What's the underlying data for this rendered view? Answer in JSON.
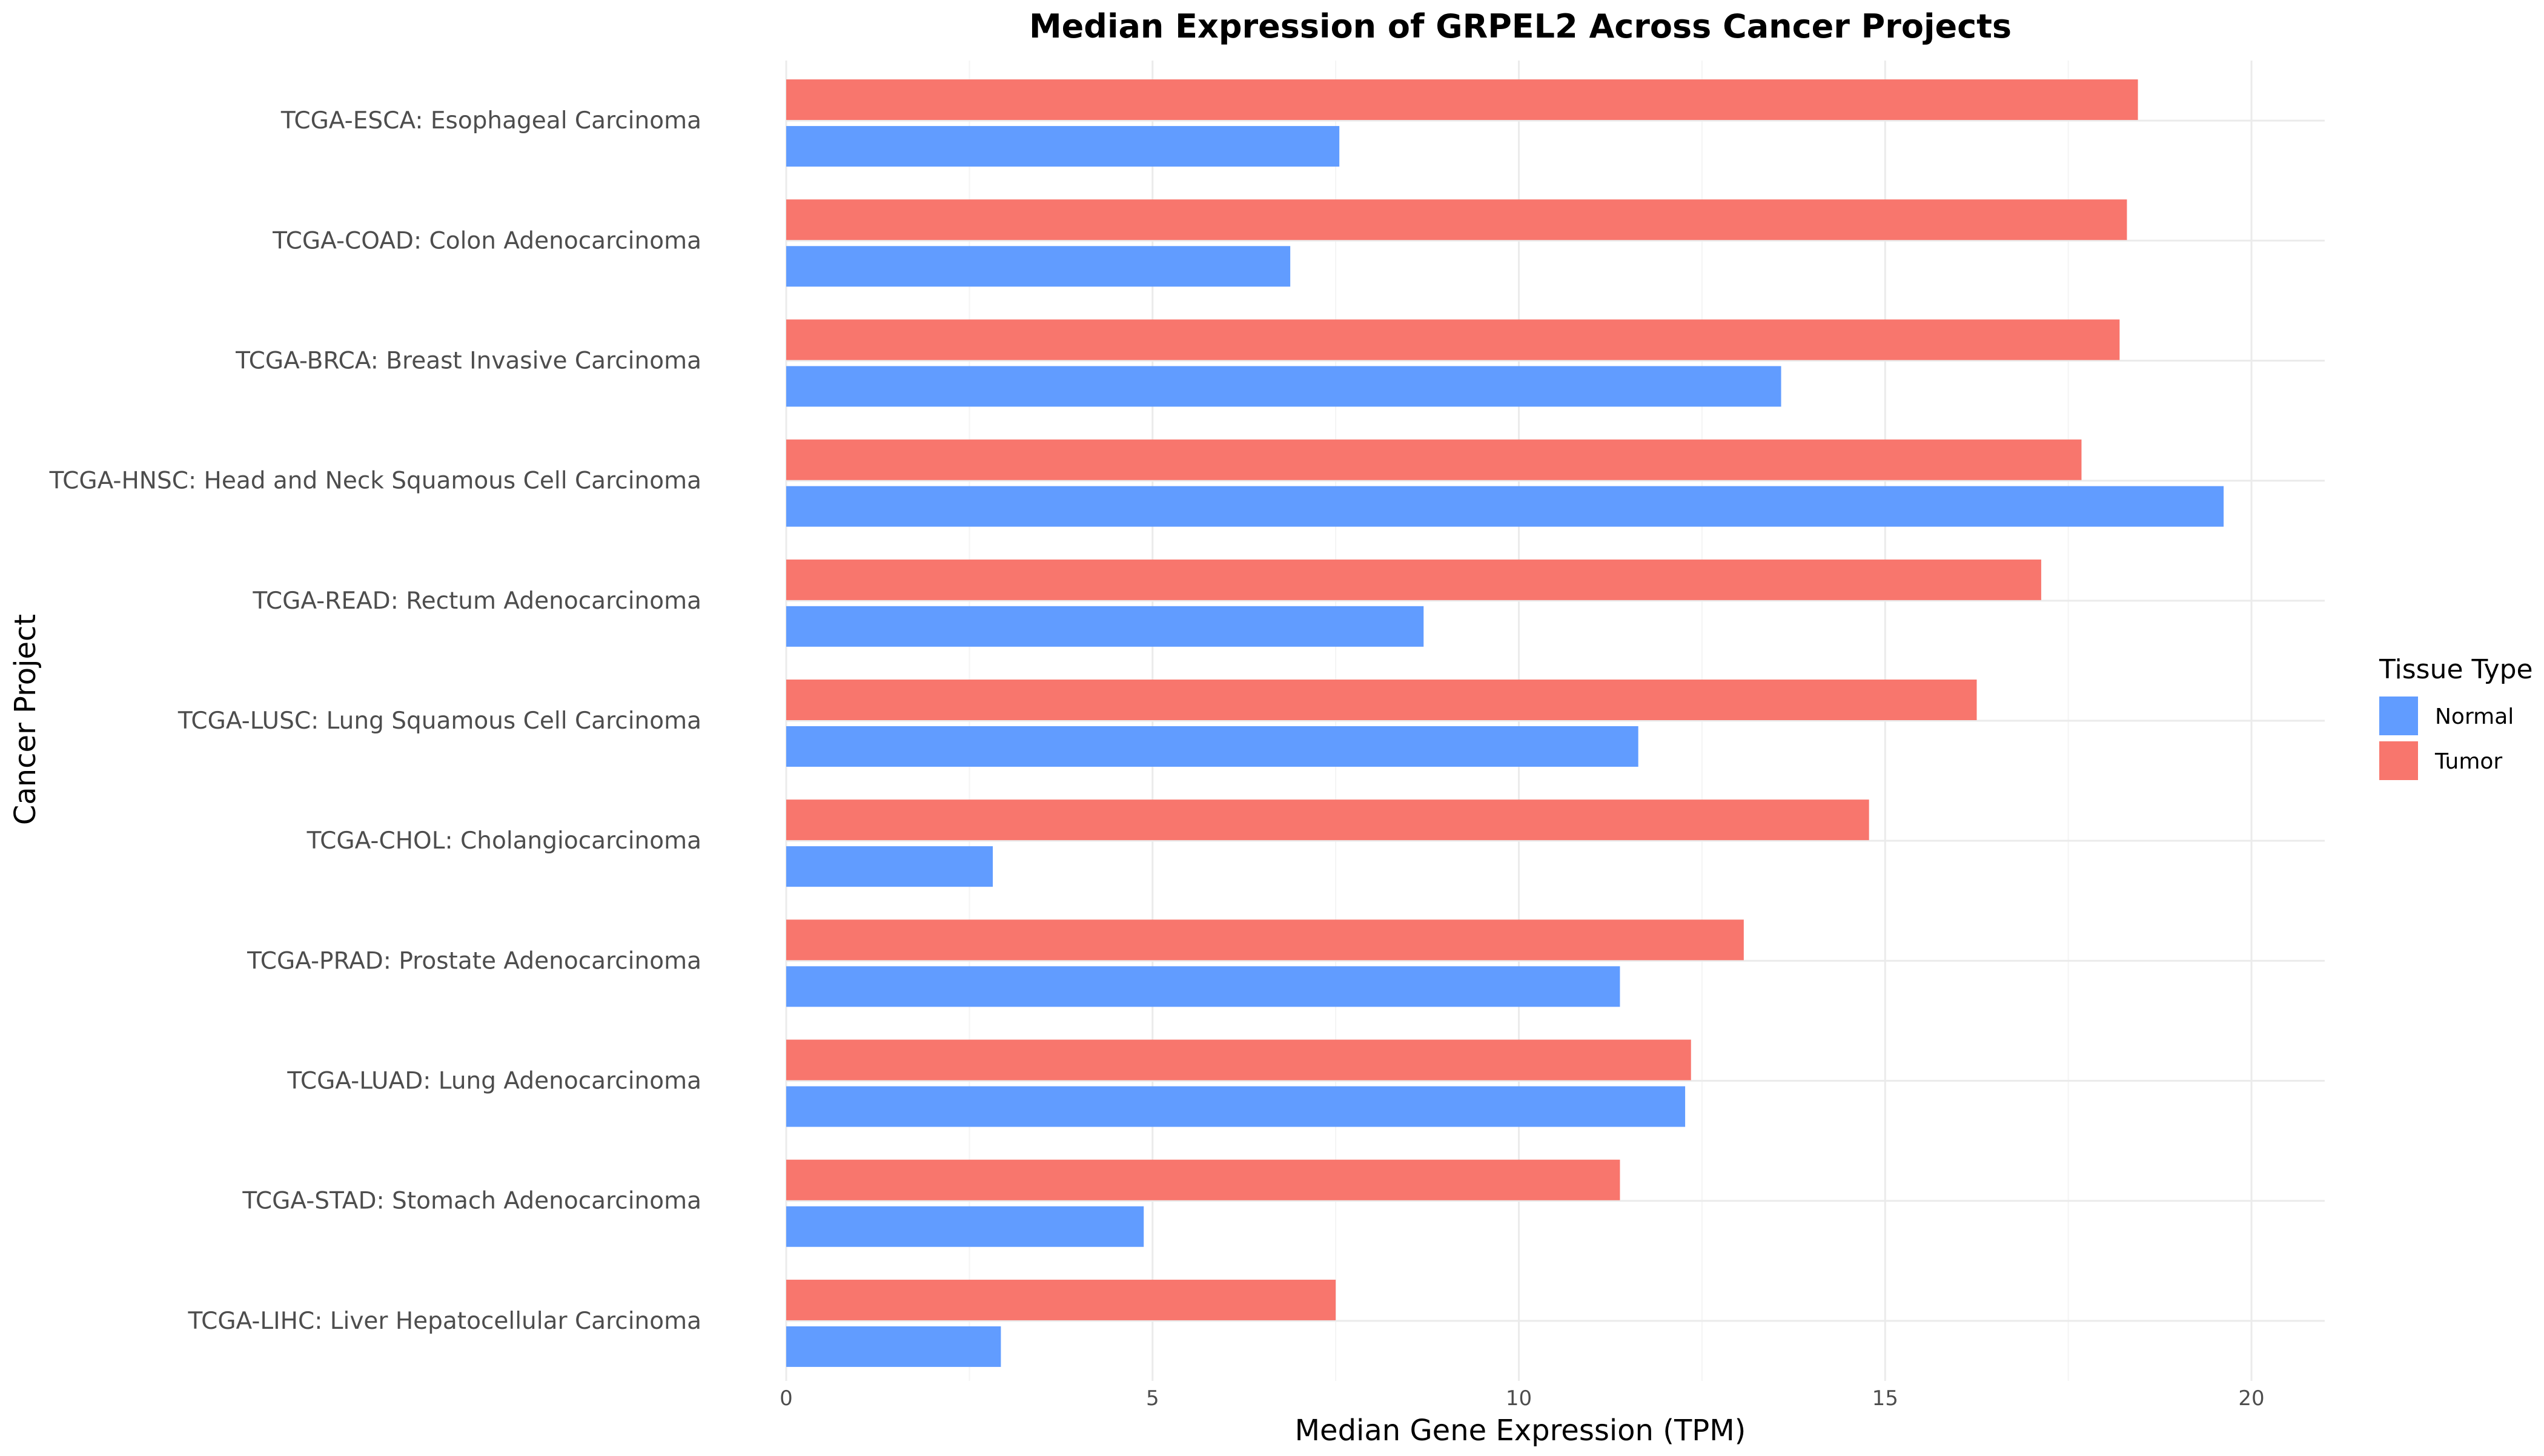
{
  "chart_data": {
    "type": "bar",
    "orientation": "horizontal",
    "title": "Median Expression of GRPEL2 Across Cancer Projects",
    "xlabel": "Median Gene Expression (TPM)",
    "ylabel": "Cancer Project",
    "xlim": [
      0,
      21
    ],
    "xticks": [
      0,
      5,
      10,
      15,
      20
    ],
    "grid": true,
    "legend": {
      "title": "Tissue Type",
      "placement": "right"
    },
    "categories": [
      "TCGA-ESCA: Esophageal Carcinoma",
      "TCGA-COAD: Colon Adenocarcinoma",
      "TCGA-BRCA: Breast Invasive Carcinoma",
      "TCGA-HNSC: Head and Neck Squamous Cell Carcinoma",
      "TCGA-READ: Rectum Adenocarcinoma",
      "TCGA-LUSC: Lung Squamous Cell Carcinoma",
      "TCGA-CHOL: Cholangiocarcinoma",
      "TCGA-PRAD: Prostate Adenocarcinoma",
      "TCGA-LUAD: Lung Adenocarcinoma",
      "TCGA-STAD: Stomach Adenocarcinoma",
      "TCGA-LIHC: Liver Hepatocellular Carcinoma"
    ],
    "series": [
      {
        "name": "Normal",
        "color": "#619CFF",
        "values": [
          7.55,
          6.88,
          13.58,
          19.62,
          8.7,
          11.63,
          2.82,
          11.38,
          12.27,
          4.88,
          2.93
        ]
      },
      {
        "name": "Tumor",
        "color": "#F8766D",
        "values": [
          18.45,
          18.3,
          18.2,
          17.68,
          17.13,
          16.25,
          14.78,
          13.07,
          12.35,
          11.38,
          7.5
        ]
      }
    ]
  }
}
